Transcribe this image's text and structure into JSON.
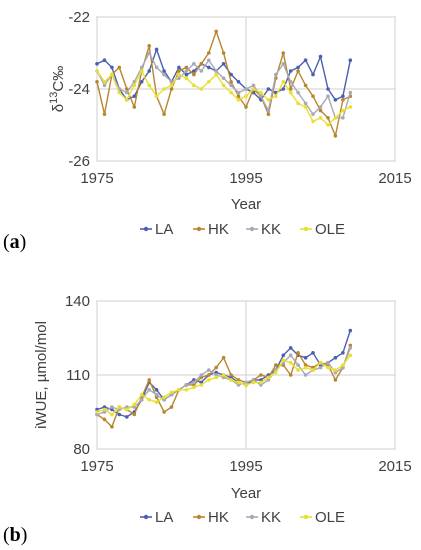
{
  "chart_data": [
    {
      "type": "line",
      "panel_label": "a",
      "title": "",
      "xlabel": "Year",
      "ylabel": "δ13C‰",
      "ylabel_main": "δ",
      "ylabel_sup": "13",
      "ylabel_rest": "C‰",
      "xlim": [
        1975,
        2015
      ],
      "ylim": [
        -26,
        -22
      ],
      "xticks": [
        1975,
        1995,
        2015
      ],
      "yticks": [
        -22,
        -24,
        -26
      ],
      "x": [
        1975,
        1976,
        1977,
        1978,
        1979,
        1980,
        1981,
        1982,
        1983,
        1984,
        1985,
        1986,
        1987,
        1988,
        1989,
        1990,
        1991,
        1992,
        1993,
        1994,
        1995,
        1996,
        1997,
        1998,
        1999,
        2000,
        2001,
        2002,
        2003,
        2004,
        2005,
        2006,
        2007,
        2008,
        2009
      ],
      "grid": true,
      "legend_position": "bottom",
      "series": [
        {
          "name": "LA",
          "color": "#4a5fb0",
          "values": [
            -23.3,
            -23.2,
            -23.4,
            -24.0,
            -24.3,
            -24.2,
            -23.8,
            -23.5,
            -22.9,
            -23.5,
            -23.8,
            -23.4,
            -23.6,
            -23.5,
            -23.3,
            -23.4,
            -23.5,
            -23.3,
            -23.6,
            -23.8,
            -24.0,
            -24.1,
            -24.3,
            -24.0,
            -24.1,
            -24.0,
            -23.5,
            -23.4,
            -23.2,
            -23.6,
            -23.1,
            -24.0,
            -24.3,
            -24.2,
            -23.2
          ]
        },
        {
          "name": "HK",
          "color": "#b8862e",
          "values": [
            -23.8,
            -24.7,
            -23.6,
            -23.4,
            -24.0,
            -24.5,
            -23.5,
            -22.8,
            -24.2,
            -24.7,
            -24.0,
            -23.5,
            -23.4,
            -23.6,
            -23.3,
            -23.0,
            -22.4,
            -23.0,
            -23.8,
            -24.2,
            -24.5,
            -24.0,
            -24.2,
            -24.7,
            -23.7,
            -23.0,
            -24.0,
            -23.5,
            -23.9,
            -24.2,
            -24.6,
            -24.8,
            -25.3,
            -24.3,
            -24.2
          ]
        },
        {
          "name": "KK",
          "color": "#a8a8b8",
          "values": [
            -23.5,
            -23.9,
            -23.6,
            -24.0,
            -24.1,
            -23.8,
            -23.4,
            -23.0,
            -23.4,
            -23.6,
            -23.8,
            -23.7,
            -23.5,
            -23.3,
            -23.5,
            -23.2,
            -23.5,
            -23.7,
            -23.9,
            -24.1,
            -24.0,
            -23.9,
            -24.2,
            -24.6,
            -23.6,
            -23.3,
            -23.8,
            -24.1,
            -24.4,
            -24.7,
            -24.5,
            -24.2,
            -24.8,
            -24.8,
            -24.1
          ]
        },
        {
          "name": "OLE",
          "color": "#e8e030",
          "values": [
            -23.5,
            -23.8,
            -23.6,
            -24.1,
            -24.3,
            -23.9,
            -23.5,
            -23.9,
            -24.2,
            -24.0,
            -23.9,
            -23.6,
            -23.7,
            -23.9,
            -24.0,
            -23.8,
            -23.6,
            -23.9,
            -24.1,
            -24.3,
            -24.2,
            -24.0,
            -24.1,
            -24.3,
            -24.2,
            -23.8,
            -24.1,
            -24.4,
            -24.5,
            -24.9,
            -24.8,
            -25.0,
            -24.8,
            -24.6,
            -24.5
          ]
        }
      ]
    },
    {
      "type": "line",
      "panel_label": "b",
      "title": "",
      "xlabel": "Year",
      "ylabel": "iWUE, µmol/mol",
      "xlim": [
        1975,
        2015
      ],
      "ylim": [
        80,
        140
      ],
      "xticks": [
        1975,
        1995,
        2015
      ],
      "yticks": [
        140,
        110,
        80
      ],
      "x": [
        1975,
        1976,
        1977,
        1978,
        1979,
        1980,
        1981,
        1982,
        1983,
        1984,
        1985,
        1986,
        1987,
        1988,
        1989,
        1990,
        1991,
        1992,
        1993,
        1994,
        1995,
        1996,
        1997,
        1998,
        1999,
        2000,
        2001,
        2002,
        2003,
        2004,
        2005,
        2006,
        2007,
        2008,
        2009
      ],
      "grid": true,
      "legend_position": "bottom",
      "series": [
        {
          "name": "LA",
          "color": "#4a5fb0",
          "values": [
            96,
            97,
            96,
            94,
            93,
            95,
            100,
            107,
            104,
            100,
            102,
            104,
            106,
            108,
            107,
            110,
            111,
            110,
            109,
            107,
            106,
            108,
            108,
            110,
            112,
            118,
            121,
            118,
            117,
            119,
            114,
            115,
            117,
            119,
            128
          ]
        },
        {
          "name": "HK",
          "color": "#b8862e",
          "values": [
            94,
            92,
            89,
            97,
            96,
            94,
            101,
            108,
            101,
            95,
            97,
            104,
            106,
            106,
            109,
            110,
            113,
            117,
            110,
            108,
            107,
            108,
            110,
            109,
            114,
            114,
            110,
            119,
            114,
            113,
            115,
            114,
            108,
            113,
            122
          ]
        },
        {
          "name": "KK",
          "color": "#a8a8b8",
          "values": [
            94,
            95,
            97,
            96,
            97,
            97,
            100,
            104,
            102,
            100,
            102,
            104,
            106,
            107,
            110,
            112,
            110,
            109,
            108,
            106,
            107,
            108,
            106,
            108,
            112,
            115,
            118,
            114,
            110,
            112,
            113,
            115,
            111,
            113,
            121
          ]
        },
        {
          "name": "OLE",
          "color": "#e8e030",
          "values": [
            95,
            96,
            94,
            97,
            96,
            98,
            102,
            100,
            99,
            101,
            103,
            104,
            104,
            105,
            106,
            108,
            109,
            110,
            108,
            107,
            106,
            107,
            107,
            109,
            111,
            116,
            115,
            112,
            113,
            112,
            115,
            113,
            112,
            114,
            118
          ]
        }
      ]
    }
  ]
}
